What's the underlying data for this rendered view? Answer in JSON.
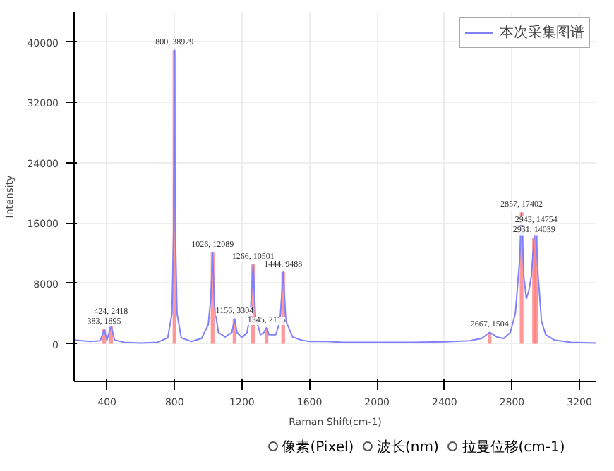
{
  "chart_data": {
    "type": "line",
    "xlabel": "Raman Shift(cm-1)",
    "ylabel": "Intensity",
    "xlim": [
      205,
      3300
    ],
    "ylim": [
      -5000,
      44000
    ],
    "xticks": [
      400,
      800,
      1200,
      1600,
      2000,
      2400,
      2800,
      3200
    ],
    "yticks": [
      0,
      8000,
      16000,
      24000,
      32000,
      40000
    ],
    "grid": true,
    "legend": "top right",
    "marker": "none",
    "line_style": "solid",
    "series": [
      {
        "name": "本次采集图谱",
        "color": "#8080ff",
        "x": [
          205,
          300,
          360,
          383,
          400,
          424,
          445,
          500,
          600,
          700,
          760,
          785,
          795,
          800,
          805,
          815,
          840,
          900,
          960,
          1000,
          1015,
          1026,
          1037,
          1060,
          1100,
          1140,
          1156,
          1170,
          1200,
          1230,
          1250,
          1266,
          1280,
          1310,
          1330,
          1345,
          1360,
          1400,
          1425,
          1444,
          1460,
          1500,
          1550,
          1600,
          1700,
          1800,
          2000,
          2200,
          2400,
          2550,
          2620,
          2667,
          2690,
          2710,
          2750,
          2790,
          2820,
          2845,
          2857,
          2870,
          2885,
          2900,
          2915,
          2931,
          2943,
          2955,
          2975,
          3000,
          3050,
          3150,
          3300
        ],
        "values": [
          500,
          300,
          400,
          1895,
          500,
          2418,
          500,
          200,
          100,
          200,
          800,
          4000,
          15000,
          38929,
          15000,
          4000,
          800,
          300,
          700,
          2500,
          6000,
          12089,
          5000,
          1500,
          900,
          1500,
          3304,
          1500,
          800,
          1500,
          4000,
          10501,
          3500,
          1200,
          1500,
          2115,
          1200,
          1200,
          3000,
          9488,
          3000,
          900,
          500,
          300,
          300,
          200,
          200,
          200,
          250,
          400,
          700,
          1504,
          1200,
          900,
          700,
          1500,
          4000,
          11000,
          17402,
          9000,
          6000,
          7000,
          9000,
          14039,
          14754,
          9000,
          3000,
          1200,
          500,
          200,
          100
        ]
      },
      {
        "color": "#ff8080",
        "type": "bar",
        "x": [
          383,
          424,
          800,
          1026,
          1156,
          1266,
          1345,
          1444,
          2667,
          2857,
          2931,
          2943
        ],
        "values": [
          1895,
          2418,
          38929,
          12089,
          3304,
          10501,
          2115,
          9488,
          1504,
          17402,
          14039,
          14754
        ],
        "value_labels": [
          "383, 1895",
          "424, 2418",
          "800, 38929",
          "1026, 12089",
          "1156, 3304",
          "1266, 10501",
          "1345, 2115",
          "1444, 9488",
          "2667, 1504",
          "2857, 17402",
          "2931, 14039",
          "2943, 14754"
        ]
      }
    ],
    "annotations": [
      "像素(Pixel)",
      "波长(nm)",
      "拉曼位移(cm-1)"
    ]
  }
}
